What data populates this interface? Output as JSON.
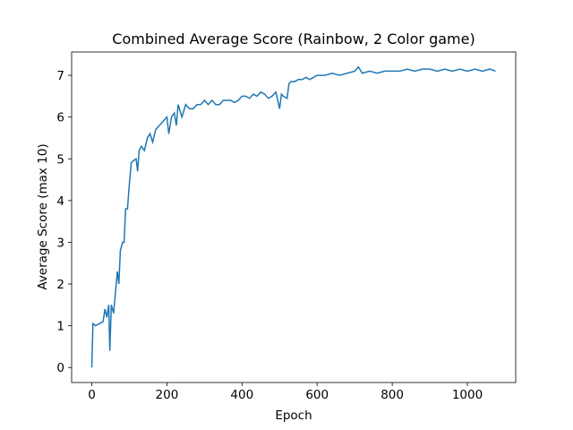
{
  "chart_data": {
    "type": "line",
    "title": "Combined Average Score (Rainbow, 2 Color game)",
    "x_label": "Epoch",
    "y_label": "Average Score (max 10)",
    "series": [
      {
        "name": "Average Score",
        "color": "#1f77b4",
        "x": [
          0,
          3,
          10,
          20,
          30,
          35,
          40,
          45,
          48,
          52,
          58,
          62,
          68,
          72,
          76,
          82,
          86,
          90,
          95,
          100,
          105,
          110,
          118,
          122,
          126,
          132,
          140,
          148,
          155,
          162,
          170,
          180,
          190,
          200,
          205,
          212,
          220,
          225,
          230,
          240,
          250,
          260,
          270,
          280,
          290,
          300,
          310,
          320,
          330,
          340,
          350,
          360,
          370,
          380,
          390,
          400,
          410,
          420,
          430,
          440,
          450,
          460,
          470,
          480,
          490,
          500,
          505,
          510,
          520,
          525,
          530,
          540,
          550,
          560,
          570,
          580,
          590,
          600,
          620,
          640,
          660,
          680,
          700,
          710,
          720,
          740,
          760,
          780,
          800,
          820,
          840,
          860,
          880,
          900,
          920,
          940,
          960,
          980,
          1000,
          1020,
          1040,
          1060,
          1075
        ],
        "values": [
          0,
          1.05,
          1.0,
          1.05,
          1.1,
          1.4,
          1.2,
          1.5,
          0.4,
          1.5,
          1.3,
          1.7,
          2.3,
          2.0,
          2.8,
          3.0,
          3.0,
          3.8,
          3.8,
          4.4,
          4.9,
          4.95,
          5.0,
          4.7,
          5.2,
          5.3,
          5.2,
          5.5,
          5.6,
          5.4,
          5.7,
          5.8,
          5.9,
          6.0,
          5.6,
          6.0,
          6.1,
          5.8,
          6.3,
          6.0,
          6.3,
          6.2,
          6.2,
          6.3,
          6.3,
          6.4,
          6.3,
          6.4,
          6.3,
          6.3,
          6.4,
          6.4,
          6.4,
          6.35,
          6.4,
          6.5,
          6.5,
          6.45,
          6.55,
          6.5,
          6.6,
          6.55,
          6.45,
          6.5,
          6.6,
          6.2,
          6.55,
          6.5,
          6.45,
          6.8,
          6.85,
          6.85,
          6.9,
          6.9,
          6.95,
          6.9,
          6.95,
          7.0,
          7.0,
          7.05,
          7.0,
          7.05,
          7.1,
          7.2,
          7.05,
          7.1,
          7.05,
          7.1,
          7.1,
          7.1,
          7.15,
          7.1,
          7.15,
          7.15,
          7.1,
          7.15,
          7.1,
          7.15,
          7.1,
          7.15,
          7.1,
          7.15,
          7.1
        ]
      }
    ],
    "xlim": [
      -53.75,
      1128.75
    ],
    "ylim": [
      -0.36,
      7.56
    ],
    "xticks": [
      0,
      200,
      400,
      600,
      800,
      1000
    ],
    "yticks": [
      0,
      1,
      2,
      3,
      4,
      5,
      6,
      7
    ]
  }
}
